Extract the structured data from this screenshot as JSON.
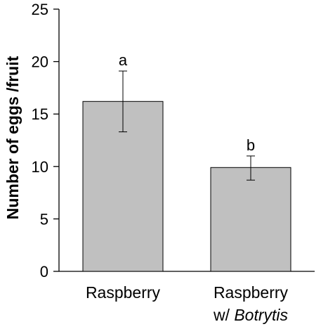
{
  "chart_data": {
    "type": "bar",
    "categories": [
      {
        "line1": "Raspberry",
        "line2_prefix": "",
        "line2_italic": ""
      },
      {
        "line1": "Raspberry",
        "line2_prefix": "w/ ",
        "line2_italic": "Botrytis"
      }
    ],
    "values": [
      16.2,
      9.9
    ],
    "error_upper": [
      19.1,
      11.0
    ],
    "error_lower": [
      13.3,
      8.7
    ],
    "significance_letters": [
      "a",
      "b"
    ],
    "xlabel": "",
    "ylabel": "Number of eggs /fruit",
    "ylim": [
      0,
      25
    ],
    "yticks": [
      0,
      5,
      10,
      15,
      20,
      25
    ],
    "grid": false,
    "bar_color": "#c0c0c0",
    "bar_edge_color": "#000000"
  }
}
